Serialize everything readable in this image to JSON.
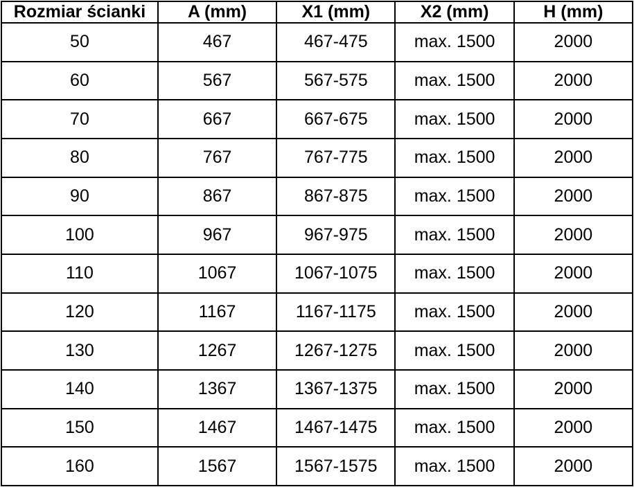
{
  "colors": {
    "border": "#000000",
    "background": "#ffffff",
    "text": "#000000"
  },
  "table": {
    "columns": [
      "Rozmiar ścianki",
      "A (mm)",
      "X1 (mm)",
      "X2 (mm)",
      "H (mm)"
    ],
    "rows": [
      [
        "50",
        "467",
        "467-475",
        "max. 1500",
        "2000"
      ],
      [
        "60",
        "567",
        "567-575",
        "max. 1500",
        "2000"
      ],
      [
        "70",
        "667",
        "667-675",
        "max. 1500",
        "2000"
      ],
      [
        "80",
        "767",
        "767-775",
        "max. 1500",
        "2000"
      ],
      [
        "90",
        "867",
        "867-875",
        "max. 1500",
        "2000"
      ],
      [
        "100",
        "967",
        "967-975",
        "max. 1500",
        "2000"
      ],
      [
        "110",
        "1067",
        "1067-1075",
        "max. 1500",
        "2000"
      ],
      [
        "120",
        "1167",
        "1167-1175",
        "max. 1500",
        "2000"
      ],
      [
        "130",
        "1267",
        "1267-1275",
        "max. 1500",
        "2000"
      ],
      [
        "140",
        "1367",
        "1367-1375",
        "max. 1500",
        "2000"
      ],
      [
        "150",
        "1467",
        "1467-1475",
        "max. 1500",
        "2000"
      ],
      [
        "160",
        "1567",
        "1567-1575",
        "max. 1500",
        "2000"
      ]
    ]
  }
}
